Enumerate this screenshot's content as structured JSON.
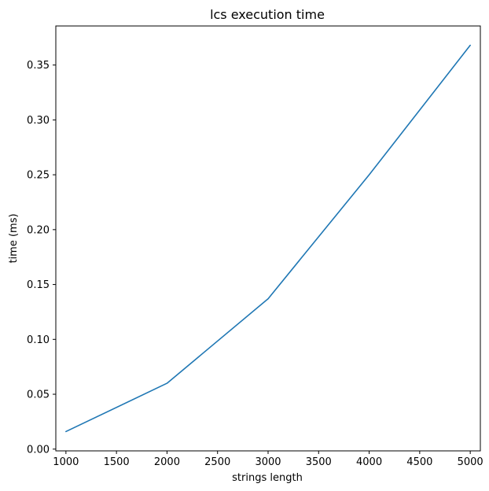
{
  "chart_data": {
    "type": "line",
    "title": "lcs execution time",
    "xlabel": "strings length",
    "ylabel": "time (ms)",
    "x": [
      1000,
      2000,
      3000,
      4000,
      5000
    ],
    "series": [
      {
        "values": [
          0.016,
          0.06,
          0.137,
          0.25,
          0.368
        ],
        "color": "#1f77b4"
      }
    ],
    "xlim": [
      900,
      5100
    ],
    "ylim": [
      -0.0016,
      0.3856
    ],
    "xticks": [
      1000,
      1500,
      2000,
      2500,
      3000,
      3500,
      4000,
      4500,
      5000
    ],
    "xtick_labels": [
      "1000",
      "1500",
      "2000",
      "2500",
      "3000",
      "3500",
      "4000",
      "4500",
      "5000"
    ],
    "yticks": [
      0.0,
      0.05,
      0.1,
      0.15,
      0.2,
      0.25,
      0.3,
      0.35
    ],
    "ytick_labels": [
      "0.00",
      "0.05",
      "0.10",
      "0.15",
      "0.20",
      "0.25",
      "0.30",
      "0.35"
    ],
    "grid": false,
    "legend": false
  }
}
